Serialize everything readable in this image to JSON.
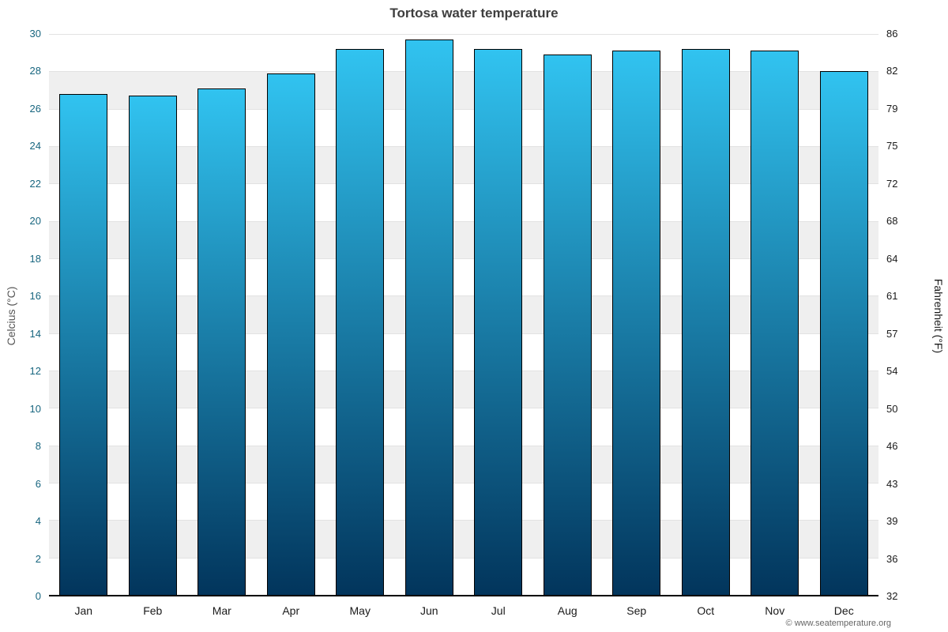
{
  "title": "Tortosa water temperature",
  "footer": {
    "copyright": "© www.seatemperature.org"
  },
  "chart_data": {
    "type": "bar",
    "title": "Tortosa water temperature",
    "categories": [
      "Jan",
      "Feb",
      "Mar",
      "Apr",
      "May",
      "Jun",
      "Jul",
      "Aug",
      "Sep",
      "Oct",
      "Nov",
      "Dec"
    ],
    "values": [
      26.8,
      26.7,
      27.1,
      27.9,
      29.2,
      29.7,
      29.2,
      28.9,
      29.1,
      29.2,
      29.1,
      28.0
    ],
    "ylabel_left": "Celcius (°C)",
    "ylabel_right": "Fahrenheit (°F)",
    "ylim": [
      0,
      30
    ],
    "ytick_step": 2,
    "yticks_celsius": [
      0,
      2,
      4,
      6,
      8,
      10,
      12,
      14,
      16,
      18,
      20,
      22,
      24,
      26,
      28,
      30
    ],
    "yticks_fahrenheit": [
      "32",
      "36",
      "39",
      "43",
      "46",
      "50",
      "54",
      "57",
      "61",
      "64",
      "68",
      "72",
      "75",
      "79",
      "82",
      "86"
    ],
    "grid": true,
    "legend": "none",
    "band_color": "#efefef",
    "bar_gradient_top": "#31c3f0",
    "bar_gradient_bottom": "#02355c",
    "bar_border_color": "#000000",
    "axis_color": "#000000",
    "left_tick_color": "#17657f",
    "right_tick_color": "#1a1a1a"
  }
}
